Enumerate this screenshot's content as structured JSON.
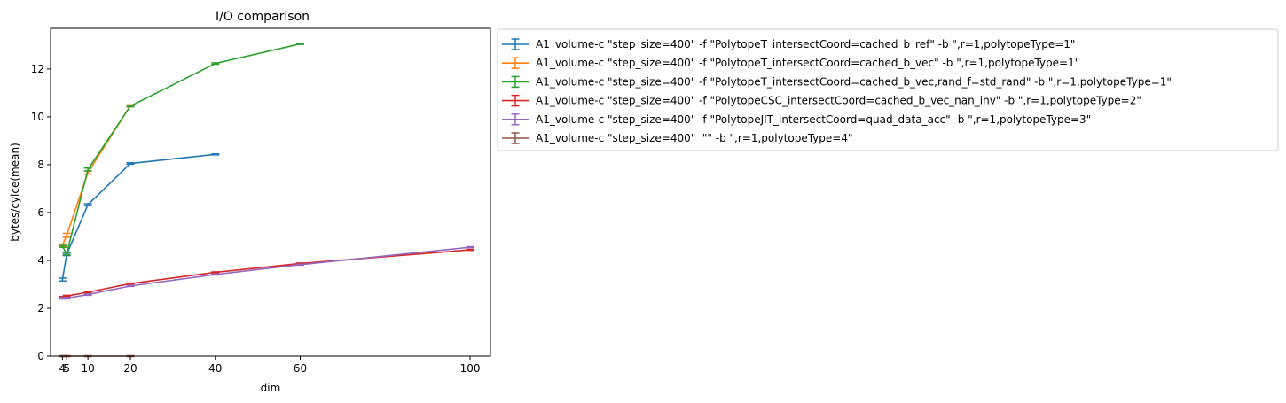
{
  "chart_data": {
    "type": "line",
    "title": "I/O comparison",
    "xlabel": "dim",
    "ylabel": "bytes/cylce(mean)",
    "xticks": [
      4,
      5,
      10,
      20,
      40,
      60,
      100
    ],
    "yticks": [
      0,
      2,
      4,
      6,
      8,
      10,
      12
    ],
    "xlim": [
      1.2,
      104.8
    ],
    "ylim": [
      0,
      13.7
    ],
    "grid": false,
    "legend_position": "outside-right-top",
    "error_bars": true,
    "series": [
      {
        "name": "A1_volume-c \"step_size=400\" -f \"PolytopeT_intersectCoord=cached_b_ref\" -b \",r=1,polytopeType=1\"",
        "color": "#1f77b4",
        "x": [
          4,
          5,
          10,
          20,
          40
        ],
        "y": [
          3.2,
          4.25,
          6.33,
          8.05,
          8.43
        ],
        "err": [
          0.06,
          0.05,
          0.04,
          0.03,
          0.02
        ]
      },
      {
        "name": "A1_volume-c \"step_size=400\" -f \"PolytopeT_intersectCoord=cached_b_vec\" -b \",r=1,polytopeType=1\"",
        "color": "#ff7f0e",
        "x": [
          4,
          5,
          10,
          20
        ],
        "y": [
          4.63,
          5.05,
          7.67,
          10.47
        ],
        "err": [
          0.05,
          0.08,
          0.06,
          0.03
        ]
      },
      {
        "name": "A1_volume-c \"step_size=400\" -f \"PolytopeT_intersectCoord=cached_b_vec,rand_f=std_rand\" -b \",r=1,polytopeType=1\"",
        "color": "#2ca02c",
        "x": [
          4,
          5,
          10,
          20,
          40,
          60
        ],
        "y": [
          4.58,
          4.28,
          7.8,
          10.45,
          12.23,
          13.05
        ],
        "err": [
          0.04,
          0.05,
          0.06,
          0.03,
          0.03,
          0.02
        ]
      },
      {
        "name": "A1_volume-c \"step_size=400\" -f \"PolytopeCSC_intersectCoord=cached_b_vec_nan_inv\" -b \",r=1,polytopeType=2\"",
        "color": "#d62728",
        "x": [
          4,
          5,
          10,
          20,
          40,
          60,
          100
        ],
        "y": [
          2.46,
          2.51,
          2.67,
          3.03,
          3.5,
          3.87,
          4.44
        ],
        "err": [
          0.03,
          0.03,
          0.02,
          0.02,
          0.02,
          0.02,
          0.02
        ]
      },
      {
        "name": "A1_volume-c \"step_size=400\" -f \"PolytopeJIT_intersectCoord=quad_data_acc\" -b \",r=1,polytopeType=3\"",
        "color": "#9467bd",
        "x": [
          4,
          5,
          10,
          20,
          40,
          60,
          100
        ],
        "y": [
          2.42,
          2.42,
          2.57,
          2.93,
          3.41,
          3.82,
          4.55
        ],
        "err": [
          0.03,
          0.03,
          0.03,
          0.02,
          0.02,
          0.02,
          0.02
        ]
      },
      {
        "name": "A1_volume-c \"step_size=400\"  \"\" -b \",r=1,polytopeType=4\"",
        "color": "#8c564b",
        "x": [
          4,
          5,
          10,
          20
        ],
        "y": [
          0,
          0,
          0,
          0
        ],
        "err": [
          0.02,
          0.02,
          0.02,
          0.02
        ]
      }
    ]
  }
}
